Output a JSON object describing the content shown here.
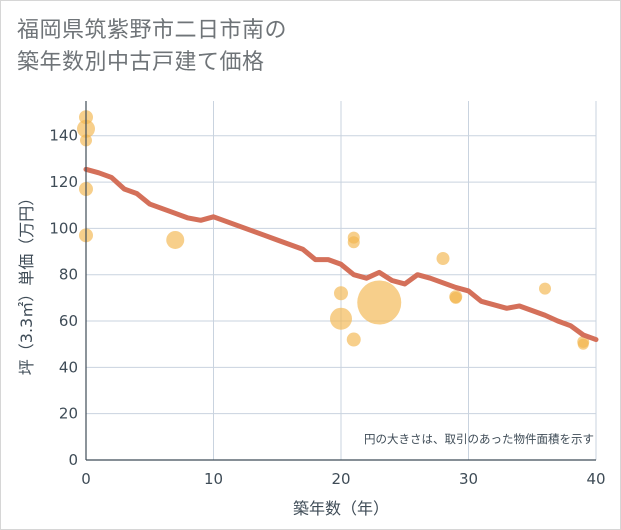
{
  "title_lines": [
    "福岡県筑紫野市二日市南の",
    "築年数別中古戸建て価格"
  ],
  "colors": {
    "line": "#d4705a",
    "bubble": "#f3b54d",
    "grid": "#c9d3df",
    "axis": "#3f4c57",
    "plot_bg": "#ffffff"
  },
  "chart_data": {
    "type": "scatter",
    "xlabel": "築年数（年）",
    "ylabel": "坪（3.3㎡）単価（万円）",
    "xlim": [
      0,
      40
    ],
    "ylim": [
      0,
      155
    ],
    "xticks": [
      "0",
      "10",
      "20",
      "30",
      "40"
    ],
    "yticks": [
      "0",
      "20",
      "40",
      "60",
      "80",
      "100",
      "120",
      "140"
    ],
    "note": "円の大きさは、取引のあった物件面積を示す",
    "trend_line": {
      "x": [
        0,
        1,
        2,
        3,
        4,
        5,
        6,
        7,
        8,
        9,
        10,
        11,
        12,
        13,
        14,
        15,
        16,
        17,
        18,
        19,
        20,
        21,
        22,
        23,
        24,
        25,
        26,
        27,
        28,
        29,
        30,
        31,
        32,
        33,
        34,
        35,
        36,
        37,
        38,
        39,
        40
      ],
      "y": [
        125.5,
        124,
        122,
        117,
        115,
        110.5,
        108.5,
        106.5,
        104.5,
        103.5,
        105,
        103,
        101,
        99,
        97,
        95,
        93,
        91,
        86.5,
        86.5,
        84.5,
        80,
        78.5,
        81,
        77.5,
        76,
        80,
        78.5,
        76.5,
        74.5,
        73,
        68.5,
        67,
        65.5,
        66.5,
        64.5,
        62.5,
        60,
        58,
        54,
        52
      ]
    },
    "bubbles": [
      {
        "x": 0,
        "y": 148,
        "size": 7
      },
      {
        "x": 0,
        "y": 143,
        "size": 9
      },
      {
        "x": 0,
        "y": 138,
        "size": 6
      },
      {
        "x": 0,
        "y": 117,
        "size": 7
      },
      {
        "x": 0,
        "y": 97,
        "size": 7
      },
      {
        "x": 7,
        "y": 95,
        "size": 9
      },
      {
        "x": 20,
        "y": 72,
        "size": 7
      },
      {
        "x": 20,
        "y": 61,
        "size": 11
      },
      {
        "x": 21,
        "y": 96,
        "size": 6
      },
      {
        "x": 21,
        "y": 94,
        "size": 6
      },
      {
        "x": 21,
        "y": 52,
        "size": 7
      },
      {
        "x": 23,
        "y": 68,
        "size": 22
      },
      {
        "x": 28,
        "y": 87,
        "size": 6.5
      },
      {
        "x": 29,
        "y": 70.5,
        "size": 6.5
      },
      {
        "x": 29,
        "y": 70,
        "size": 6
      },
      {
        "x": 36,
        "y": 74,
        "size": 6
      },
      {
        "x": 39,
        "y": 51,
        "size": 6
      },
      {
        "x": 39,
        "y": 50,
        "size": 5.5
      }
    ]
  }
}
